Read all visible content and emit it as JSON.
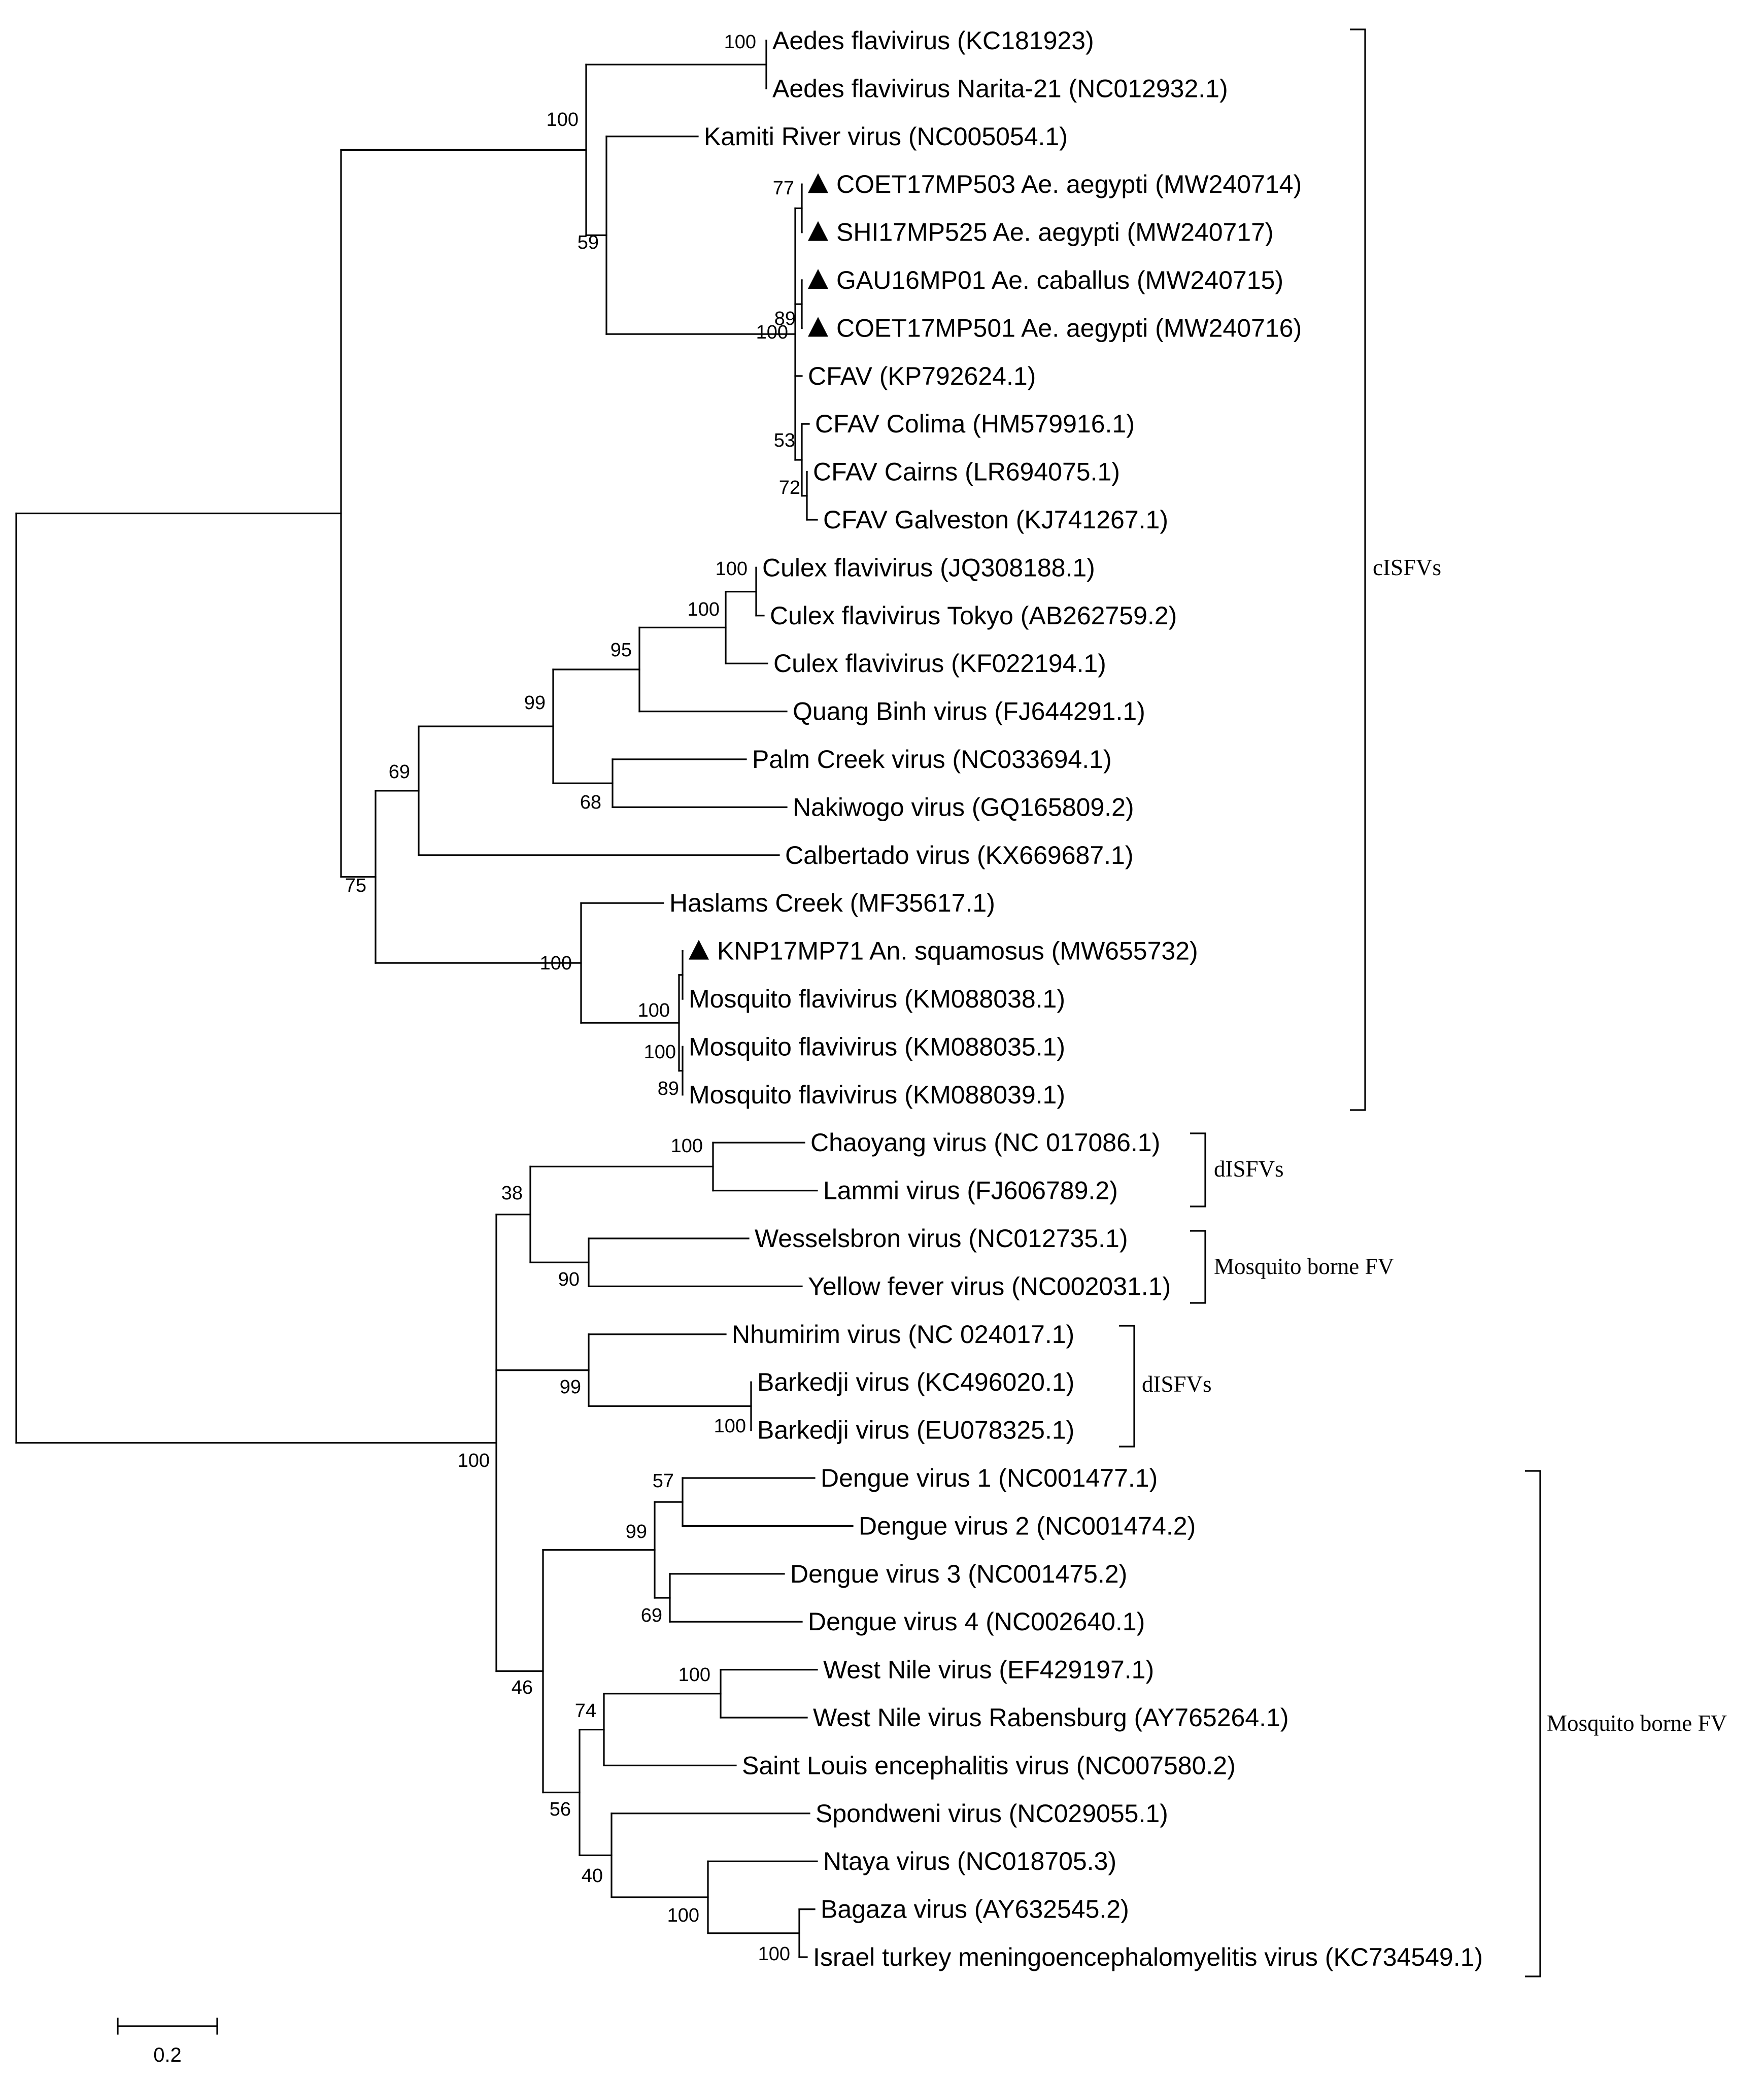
{
  "figure": {
    "type": "phylogenetic-tree",
    "scale_bar_label": "0.2",
    "marker_color": "#000000"
  },
  "taxa": [
    {
      "id": "aedes_fv",
      "label": "Aedes flavivirus (KC181923)"
    },
    {
      "id": "aedes_narita",
      "label": "Aedes flavivirus Narita-21 (NC012932.1)"
    },
    {
      "id": "kamiti",
      "label": "Kamiti River virus (NC005054.1)"
    },
    {
      "id": "coet503",
      "label": "COET17MP503 Ae. aegypti (MW240714)",
      "marked": true
    },
    {
      "id": "shi525",
      "label": "SHI17MP525 Ae. aegypti (MW240717)",
      "marked": true
    },
    {
      "id": "gau01",
      "label": "GAU16MP01 Ae. caballus (MW240715)",
      "marked": true
    },
    {
      "id": "coet501",
      "label": "COET17MP501 Ae. aegypti (MW240716)",
      "marked": true
    },
    {
      "id": "cfav",
      "label": "CFAV (KP792624.1)"
    },
    {
      "id": "cfav_colima",
      "label": "CFAV Colima (HM579916.1)"
    },
    {
      "id": "cfav_cairns",
      "label": "CFAV Cairns (LR694075.1)"
    },
    {
      "id": "cfav_galveston",
      "label": "CFAV Galveston (KJ741267.1)"
    },
    {
      "id": "culex1",
      "label": "Culex flavivirus (JQ308188.1)"
    },
    {
      "id": "culex_tokyo",
      "label": "Culex flavivirus Tokyo (AB262759.2)"
    },
    {
      "id": "culex2",
      "label": "Culex flavivirus (KF022194.1)"
    },
    {
      "id": "quang_binh",
      "label": "Quang Binh virus (FJ644291.1)"
    },
    {
      "id": "palm_creek",
      "label": "Palm Creek virus (NC033694.1)"
    },
    {
      "id": "nakiwogo",
      "label": "Nakiwogo virus (GQ165809.2)"
    },
    {
      "id": "calbertado",
      "label": "Calbertado virus (KX669687.1)"
    },
    {
      "id": "haslams",
      "label": "Haslams Creek (MF35617.1)"
    },
    {
      "id": "knp71",
      "label": "KNP17MP71 An. squamosus (MW655732)",
      "marked": true
    },
    {
      "id": "mosq38",
      "label": "Mosquito flavivirus (KM088038.1)"
    },
    {
      "id": "mosq35",
      "label": "Mosquito flavivirus (KM088035.1)"
    },
    {
      "id": "mosq39",
      "label": "Mosquito flavivirus (KM088039.1)"
    },
    {
      "id": "chaoyang",
      "label": "Chaoyang virus (NC 017086.1)"
    },
    {
      "id": "lammi",
      "label": "Lammi virus (FJ606789.2)"
    },
    {
      "id": "wesselsbron",
      "label": "Wesselsbron virus (NC012735.1)"
    },
    {
      "id": "yellow_fever",
      "label": "Yellow fever virus (NC002031.1)"
    },
    {
      "id": "nhumirim",
      "label": "Nhumirim virus (NC 024017.1)"
    },
    {
      "id": "barkedji1",
      "label": "Barkedji virus (KC496020.1)"
    },
    {
      "id": "barkedji2",
      "label": "Barkedji virus (EU078325.1)"
    },
    {
      "id": "dengue1",
      "label": "Dengue virus 1 (NC001477.1)"
    },
    {
      "id": "dengue2",
      "label": "Dengue virus 2 (NC001474.2)"
    },
    {
      "id": "dengue3",
      "label": "Dengue virus 3 (NC001475.2)"
    },
    {
      "id": "dengue4",
      "label": "Dengue virus 4 (NC002640.1)"
    },
    {
      "id": "wnv",
      "label": "West Nile virus (EF429197.1)"
    },
    {
      "id": "wnv_rab",
      "label": "West Nile virus Rabensburg (AY765264.1)"
    },
    {
      "id": "slev",
      "label": "Saint Louis encephalitis virus (NC007580.2)"
    },
    {
      "id": "spondweni",
      "label": "Spondweni virus (NC029055.1)"
    },
    {
      "id": "ntaya",
      "label": "Ntaya virus (NC018705.3)"
    },
    {
      "id": "bagaza",
      "label": "Bagaza virus (AY632545.2)"
    },
    {
      "id": "itmv",
      "label": "Israel turkey meningoencephalomyelitis virus (KC734549.1)"
    }
  ],
  "bootstrap_values": [
    {
      "node": "aedes_pair",
      "value": "100"
    },
    {
      "node": "aedes_kamiti_cfav",
      "value": "100"
    },
    {
      "node": "kamiti_cfav",
      "value": "59"
    },
    {
      "node": "coet503_shi525",
      "value": "77"
    },
    {
      "node": "gau01_coet501",
      "value": "89"
    },
    {
      "node": "cfav_field",
      "value": "100"
    },
    {
      "node": "cfav_colima_group",
      "value": "53"
    },
    {
      "node": "cairns_galveston",
      "value": "72"
    },
    {
      "node": "culex_pair",
      "value": "100"
    },
    {
      "node": "culex_trio",
      "value": "100"
    },
    {
      "node": "culex_quang",
      "value": "95"
    },
    {
      "node": "culex_palm",
      "value": "99"
    },
    {
      "node": "palm_nakiwogo",
      "value": "68"
    },
    {
      "node": "culex_calbertado",
      "value": "69"
    },
    {
      "node": "culex_haslams",
      "value": "75"
    },
    {
      "node": "haslams_group",
      "value": "100"
    },
    {
      "node": "knp_mosq38",
      "value": "100"
    },
    {
      "node": "mosq_group",
      "value": "100"
    },
    {
      "node": "mosq35_39",
      "value": "89"
    },
    {
      "node": "chaoyang_lammi",
      "value": "100"
    },
    {
      "node": "dual_clade",
      "value": "38"
    },
    {
      "node": "wessel_yellow",
      "value": "90"
    },
    {
      "node": "nhumirim_barkedji",
      "value": "99"
    },
    {
      "node": "barkedji_pair",
      "value": "100"
    },
    {
      "node": "second_major",
      "value": "100"
    },
    {
      "node": "dengue_1_2",
      "value": "57"
    },
    {
      "node": "dengue_all",
      "value": "99"
    },
    {
      "node": "dengue_3_4",
      "value": "69"
    },
    {
      "node": "wnv_pair",
      "value": "100"
    },
    {
      "node": "wnv_slev",
      "value": "74"
    },
    {
      "node": "jev_ntaya_groups",
      "value": "56"
    },
    {
      "node": "spondweni_ntaya",
      "value": "40"
    },
    {
      "node": "ntaya_group",
      "value": "100"
    },
    {
      "node": "bagaza_itmv",
      "value": "100"
    },
    {
      "node": "mbfv_clade",
      "value": "46"
    }
  ],
  "group_brackets": [
    {
      "id": "cisfvs_top",
      "label": "cISFVs"
    },
    {
      "id": "disfvs_upper",
      "label": "dISFVs"
    },
    {
      "id": "mbfv_upper",
      "label": "Mosquito borne FV"
    },
    {
      "id": "disfvs_lower",
      "label": "dISFVs"
    },
    {
      "id": "mbfv_lower",
      "label": "Mosquito borne FV"
    }
  ]
}
